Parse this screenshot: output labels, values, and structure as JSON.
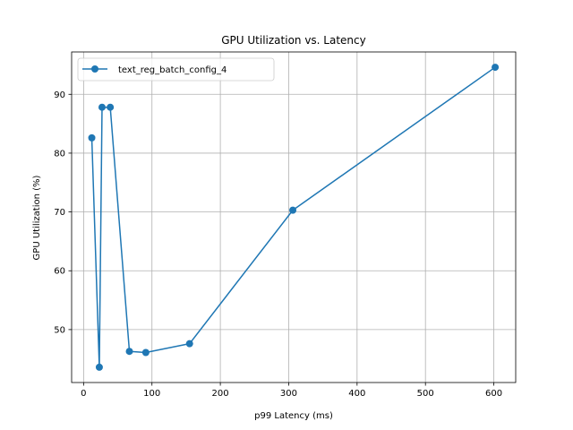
{
  "chart_data": {
    "type": "line",
    "title": "GPU Utilization vs. Latency",
    "xlabel": "p99 Latency (ms)",
    "ylabel": "GPU Utilization (%)",
    "xlim": [
      -17.5,
      632
    ],
    "ylim": [
      41.0,
      97.2
    ],
    "xticks": [
      0,
      100,
      200,
      300,
      400,
      500,
      600
    ],
    "yticks": [
      50,
      60,
      70,
      80,
      90
    ],
    "grid": true,
    "legend_position": "top-left",
    "series": [
      {
        "name": "text_reg_batch_config_4",
        "color": "#1f77b4",
        "marker": "circle",
        "x": [
          12,
          23,
          27,
          39,
          67,
          91,
          155,
          306,
          602
        ],
        "y": [
          82.6,
          43.6,
          87.8,
          87.8,
          46.3,
          46.1,
          47.6,
          70.3,
          94.6
        ]
      }
    ]
  }
}
